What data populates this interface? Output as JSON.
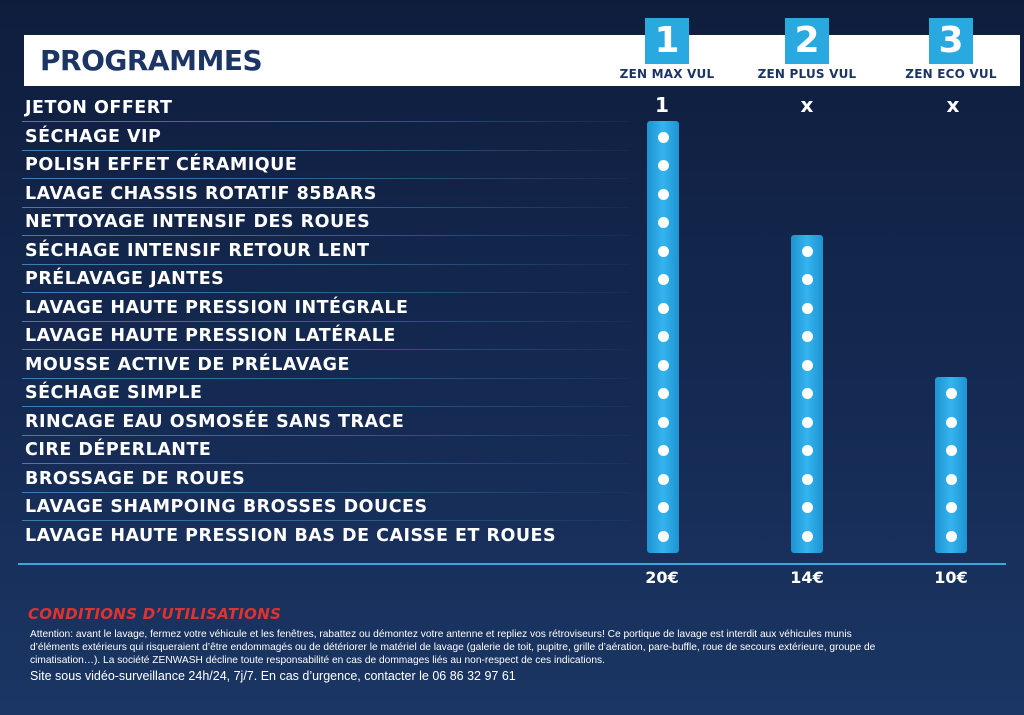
{
  "header": {
    "title": "PROGRAMMES"
  },
  "plans": [
    {
      "number": "1",
      "name": "ZEN MAX VUL",
      "jeton": "1",
      "price": "20€",
      "included_rows": 15
    },
    {
      "number": "2",
      "name": "ZEN PLUS VUL",
      "jeton": "x",
      "price": "14€",
      "included_rows": 11
    },
    {
      "number": "3",
      "name": "ZEN ECO VUL",
      "jeton": "x",
      "price": "10€",
      "included_rows": 6
    }
  ],
  "rows": [
    "JETON OFFERT",
    "SÉCHAGE VIP",
    "POLISH EFFET CÉRAMIQUE",
    "LAVAGE CHASSIS ROTATIF 85BARS",
    "NETTOYAGE INTENSIF DES ROUES",
    "SÉCHAGE INTENSIF RETOUR LENT",
    "PRÉLAVAGE JANTES",
    "LAVAGE HAUTE PRESSION INTÉGRALE",
    "LAVAGE HAUTE PRESSION LATÉRALE",
    "MOUSSE ACTIVE DE PRÉLAVAGE",
    "SÉCHAGE SIMPLE",
    "RINCAGE EAU OSMOSÉE SANS TRACE",
    "CIRE DÉPERLANTE",
    "BROSSAGE DE ROUES",
    "LAVAGE SHAMPOING BROSSES DOUCES",
    "LAVAGE HAUTE PRESSION BAS DE CAISSE ET ROUES"
  ],
  "conditions": {
    "title": "CONDITIONS D’UTILISATIONS",
    "text": "Attention: avant le lavage, fermez votre véhicule et les fenêtres, rabattez ou démontez votre antenne et repliez vos rétroviseurs!  Ce portique de lavage est interdit aux véhicules munis d’éléments extérieurs qui risqueraient d’être endommagés ou de détériorer le matériel de lavage  (galerie de toit, pupitre, grille d’aération, pare-buffle, roue de secours extérieure, groupe de cimatisation…). La société ZENWASH décline toute responsabilité en cas de dommages liés au non-respect de ces indications.",
    "surveillance": "Site sous vidéo-surveillance 24h/24, 7j/7. En cas d’urgence, contacter le 06 86 32 97 61"
  },
  "colors": {
    "background": "#152b54",
    "title_text": "#1c3564",
    "accent": "#29a9df",
    "conditions_title": "#e0332f",
    "text": "#ffffff"
  },
  "icons": {
    "included_marker": "dot-icon"
  }
}
